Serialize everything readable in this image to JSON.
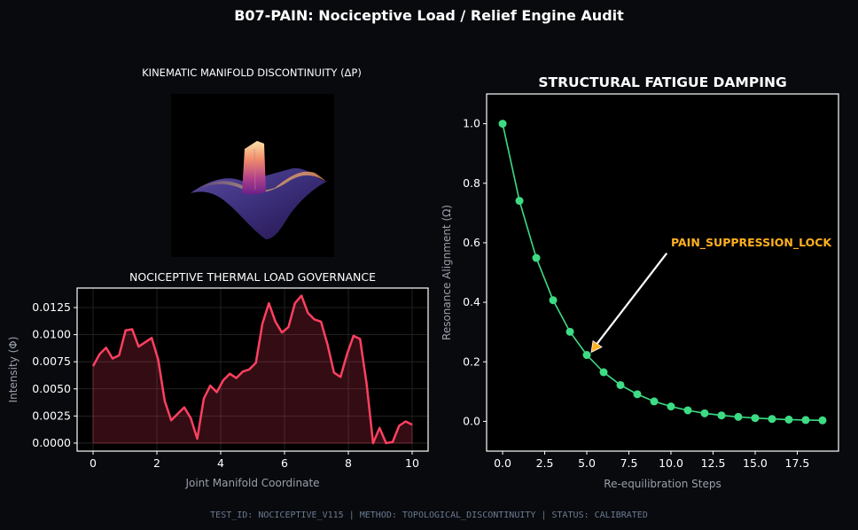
{
  "suptitle": "B07-PAIN: Nociceptive Load / Relief Engine Audit",
  "footer": "TEST_ID: NOCICEPTIVE_V115 | METHOD: TOPOLOGICAL_DISCONTINUITY | STATUS: CALIBRATED",
  "chart_data": [
    {
      "type": "surface3d",
      "title": "KINEMATIC MANIFOLD DISCONTINUITY (ΔP)",
      "colormap": "magma",
      "description_visible": "surface with central raised plateau"
    },
    {
      "type": "area",
      "title": "NOCICEPTIVE THERMAL LOAD GOVERNANCE",
      "xlabel": "Joint Manifold Coordinate",
      "ylabel": "Intensity (Φ)",
      "x_range": [
        0,
        10
      ],
      "xlim": [
        -0.5,
        10.5
      ],
      "ylim": [
        -0.00074,
        0.0143
      ],
      "xticks": [
        "0",
        "2",
        "4",
        "6",
        "8",
        "10"
      ],
      "yticks": [
        "0.0000",
        "0.0025",
        "0.0050",
        "0.0075",
        "0.0100",
        "0.0125"
      ],
      "grid": true,
      "color": "#ff4060",
      "values": [
        0.0071,
        0.0082,
        0.0088,
        0.0078,
        0.0081,
        0.0104,
        0.0105,
        0.0089,
        0.0093,
        0.0097,
        0.0077,
        0.0039,
        0.0021,
        0.0027,
        0.0033,
        0.0023,
        0.0004,
        0.0041,
        0.0053,
        0.0047,
        0.0058,
        0.0064,
        0.006,
        0.0066,
        0.0068,
        0.0074,
        0.011,
        0.0129,
        0.0112,
        0.0102,
        0.0107,
        0.0129,
        0.0136,
        0.012,
        0.0114,
        0.0112,
        0.0091,
        0.0065,
        0.0061,
        0.0082,
        0.0099,
        0.0096,
        0.0055,
        0.0,
        0.0014,
        0.0,
        0.0001,
        0.0016,
        0.002,
        0.0017
      ]
    },
    {
      "type": "line",
      "title": "STRUCTURAL FATIGUE DAMPING",
      "xlabel": "Re-equilibration Steps",
      "ylabel": "Resonance Alignment (Ω)",
      "xlim": [
        -0.95,
        19.95
      ],
      "ylim": [
        -0.1,
        1.1
      ],
      "xticks": [
        "0.0",
        "2.5",
        "5.0",
        "7.5",
        "10.0",
        "12.5",
        "15.0",
        "17.5"
      ],
      "yticks": [
        "0.0",
        "0.2",
        "0.4",
        "0.6",
        "0.8",
        "1.0"
      ],
      "grid": false,
      "color": "#3ddc84",
      "x": [
        0,
        1,
        2,
        3,
        4,
        5,
        6,
        7,
        8,
        9,
        10,
        11,
        12,
        13,
        14,
        15,
        16,
        17,
        18,
        19
      ],
      "values": [
        1.0,
        0.741,
        0.549,
        0.407,
        0.301,
        0.223,
        0.165,
        0.122,
        0.091,
        0.067,
        0.05,
        0.037,
        0.027,
        0.02,
        0.015,
        0.011,
        0.008,
        0.006,
        0.0045,
        0.0033
      ],
      "annotation": {
        "text": "PAIN_SUPPRESSION_LOCK",
        "xy": [
          5,
          0.223
        ],
        "xytext": [
          10,
          0.6
        ],
        "color": "#ffb020"
      }
    }
  ]
}
